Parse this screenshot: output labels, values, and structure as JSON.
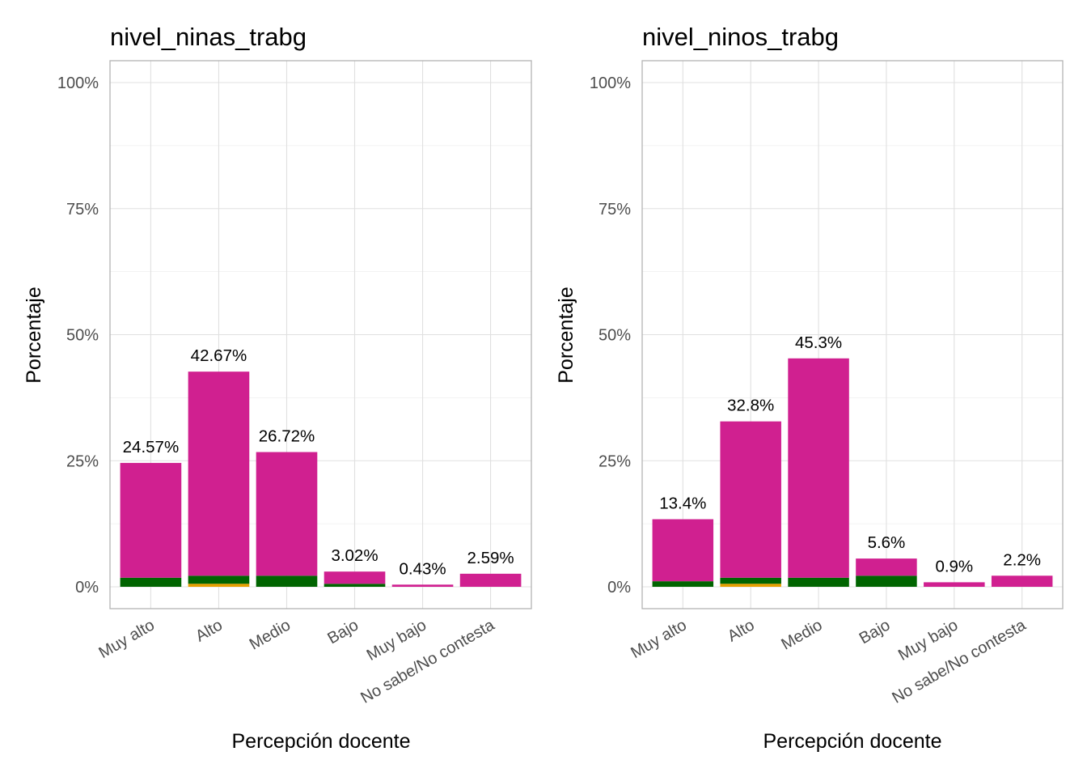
{
  "chart_data": [
    {
      "type": "bar",
      "stacked": true,
      "title": "nivel_ninas_trabg",
      "xlabel": "Percepción docente",
      "ylabel": "Porcentaje",
      "ylim": [
        0,
        100
      ],
      "yticks": [
        "0%",
        "25%",
        "50%",
        "75%",
        "100%"
      ],
      "grid": true,
      "categories": [
        "Muy alto",
        "Alto",
        "Medio",
        "Bajo",
        "Muy bajo",
        "No sabe/No contesta"
      ],
      "totals": [
        24.57,
        42.67,
        26.72,
        3.02,
        0.43,
        2.59
      ],
      "data_labels": [
        "24.57%",
        "42.67%",
        "26.72%",
        "3.02%",
        "0.43%",
        "2.59%"
      ],
      "series": [
        {
          "values": [
            0,
            0.6,
            0,
            0,
            0,
            0
          ],
          "color": "#E69F00"
        },
        {
          "values": [
            1.8,
            1.6,
            2.2,
            0.6,
            0,
            0
          ],
          "color": "#006400"
        },
        {
          "values": [
            22.77,
            40.47,
            24.52,
            2.42,
            0.43,
            2.59
          ],
          "color": "#D02090"
        }
      ]
    },
    {
      "type": "bar",
      "stacked": true,
      "title": "nivel_ninos_trabg",
      "xlabel": "Percepción docente",
      "ylabel": "Porcentaje",
      "ylim": [
        0,
        100
      ],
      "yticks": [
        "0%",
        "25%",
        "50%",
        "75%",
        "100%"
      ],
      "grid": true,
      "categories": [
        "Muy alto",
        "Alto",
        "Medio",
        "Bajo",
        "Muy bajo",
        "No sabe/No contesta"
      ],
      "totals": [
        13.4,
        32.8,
        45.3,
        5.6,
        0.9,
        2.2
      ],
      "data_labels": [
        "13.4%",
        "32.8%",
        "45.3%",
        "5.6%",
        "0.9%",
        "2.2%"
      ],
      "series": [
        {
          "values": [
            0,
            0.6,
            0,
            0,
            0,
            0
          ],
          "color": "#E69F00"
        },
        {
          "values": [
            1.1,
            1.2,
            1.8,
            2.2,
            0,
            0
          ],
          "color": "#006400"
        },
        {
          "values": [
            12.3,
            31.0,
            43.5,
            3.4,
            0.9,
            2.2
          ],
          "color": "#D02090"
        }
      ]
    }
  ]
}
